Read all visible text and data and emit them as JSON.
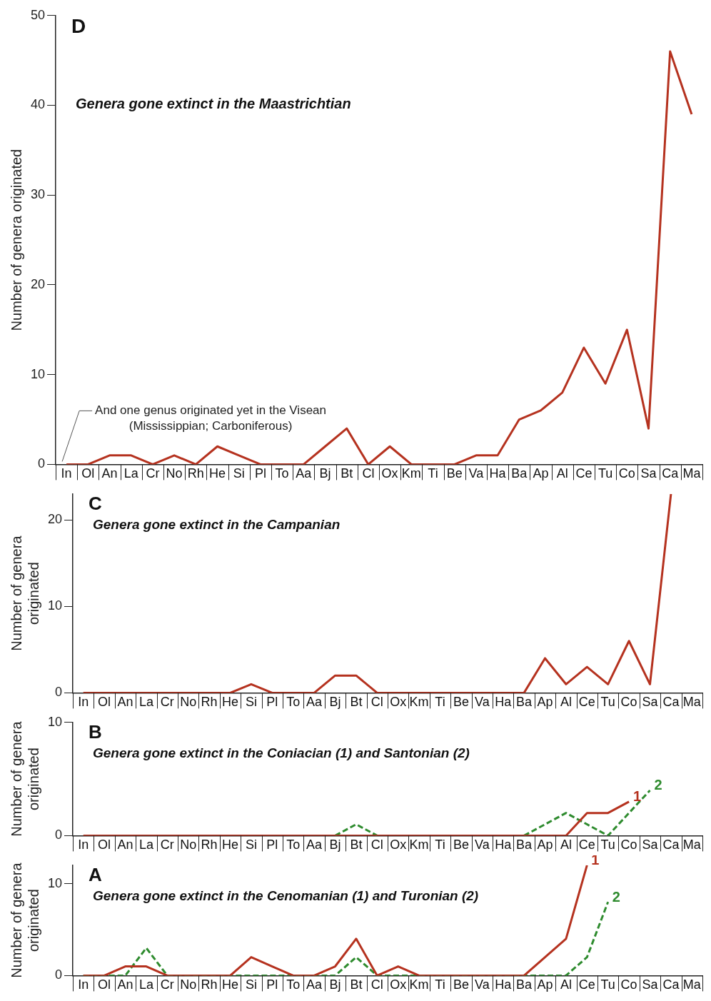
{
  "chart_data": [
    {
      "type": "line",
      "title": "D",
      "subtitle": "Genera gone extinct in the Maastrichtian",
      "ylabel": "Number of genera originated",
      "categories": [
        "In",
        "Ol",
        "An",
        "La",
        "Cr",
        "No",
        "Rh",
        "He",
        "Si",
        "Pl",
        "To",
        "Aa",
        "Bj",
        "Bt",
        "Cl",
        "Ox",
        "Km",
        "Ti",
        "Be",
        "Va",
        "Ha",
        "Ba",
        "Ap",
        "Al",
        "Ce",
        "Tu",
        "Co",
        "Sa",
        "Ca",
        "Ma"
      ],
      "series": [
        {
          "color": "#b5321f",
          "values": [
            0,
            0,
            1,
            1,
            0,
            1,
            0,
            2,
            1,
            0,
            0,
            0,
            2,
            4,
            0,
            2,
            0,
            0,
            0,
            1,
            1,
            5,
            6,
            8,
            13,
            9,
            15,
            4,
            46,
            39
          ]
        }
      ],
      "ylim": [
        0,
        50
      ],
      "yticks": [
        0,
        10,
        20,
        30,
        40,
        50
      ],
      "grid": false,
      "legend": false,
      "marker": "none",
      "annotations": [
        {
          "text": "And one genus originated yet in the Visean\n(Mississippian; Carboniferous)",
          "x": "In",
          "y": 0
        }
      ]
    },
    {
      "type": "line",
      "title": "C",
      "subtitle": "Genera gone extinct in the Campanian",
      "ylabel": "Number of genera originated",
      "categories": [
        "In",
        "Ol",
        "An",
        "La",
        "Cr",
        "No",
        "Rh",
        "He",
        "Si",
        "Pl",
        "To",
        "Aa",
        "Bj",
        "Bt",
        "Cl",
        "Ox",
        "Km",
        "Ti",
        "Be",
        "Va",
        "Ha",
        "Ba",
        "Ap",
        "Al",
        "Ce",
        "Tu",
        "Co",
        "Sa",
        "Ca",
        "Ma"
      ],
      "series": [
        {
          "color": "#b5321f",
          "values": [
            0,
            0,
            0,
            0,
            0,
            0,
            0,
            0,
            1,
            0,
            0,
            0,
            2,
            2,
            0,
            0,
            0,
            0,
            0,
            0,
            0,
            0,
            4,
            1,
            3,
            1,
            6,
            1,
            23,
            null
          ]
        }
      ],
      "ylim": [
        0,
        23
      ],
      "yticks": [
        0,
        10,
        20
      ],
      "grid": false,
      "legend": false,
      "marker": "none"
    },
    {
      "type": "line",
      "title": "B",
      "subtitle": "Genera gone extinct in the Coniacian (1) and Santonian (2)",
      "ylabel": "Number of genera originated",
      "categories": [
        "In",
        "Ol",
        "An",
        "La",
        "Cr",
        "No",
        "Rh",
        "He",
        "Si",
        "Pl",
        "To",
        "Aa",
        "Bj",
        "Bt",
        "Cl",
        "Ox",
        "Km",
        "Ti",
        "Be",
        "Va",
        "Ha",
        "Ba",
        "Ap",
        "Al",
        "Ce",
        "Tu",
        "Co",
        "Sa",
        "Ca",
        "Ma"
      ],
      "series": [
        {
          "name": "1",
          "color": "#b5321f",
          "line_style": "solid",
          "values": [
            0,
            0,
            0,
            0,
            0,
            0,
            0,
            0,
            0,
            0,
            0,
            0,
            0,
            0,
            0,
            0,
            0,
            0,
            0,
            0,
            0,
            0,
            0,
            0,
            2,
            2,
            3,
            null,
            null,
            null
          ]
        },
        {
          "name": "2",
          "color": "#2e8b2e",
          "line_style": "dashed",
          "values": [
            null,
            null,
            null,
            null,
            null,
            null,
            null,
            null,
            null,
            null,
            null,
            null,
            0,
            1,
            0,
            null,
            null,
            null,
            null,
            null,
            null,
            0,
            1,
            2,
            1,
            0,
            2,
            4,
            null,
            null
          ]
        }
      ],
      "ylim": [
        0,
        10
      ],
      "yticks": [
        0,
        10
      ],
      "grid": false,
      "legend": false,
      "marker": "none"
    },
    {
      "type": "line",
      "title": "A",
      "subtitle": "Genera gone extinct in the Cenomanian (1) and Turonian (2)",
      "ylabel": "Number of genera originated",
      "categories": [
        "In",
        "Ol",
        "An",
        "La",
        "Cr",
        "No",
        "Rh",
        "He",
        "Si",
        "Pl",
        "To",
        "Aa",
        "Bj",
        "Bt",
        "Cl",
        "Ox",
        "Km",
        "Ti",
        "Be",
        "Va",
        "Ha",
        "Ba",
        "Ap",
        "Al",
        "Ce",
        "Tu",
        "Co",
        "Sa",
        "Ca",
        "Ma"
      ],
      "series": [
        {
          "name": "1",
          "color": "#b5321f",
          "line_style": "solid",
          "values": [
            0,
            0,
            1,
            1,
            0,
            0,
            0,
            0,
            2,
            1,
            0,
            0,
            1,
            4,
            0,
            1,
            0,
            0,
            0,
            0,
            0,
            0,
            2,
            4,
            12,
            null,
            null,
            null,
            null,
            null
          ]
        },
        {
          "name": "2",
          "color": "#2e8b2e",
          "line_style": "dashed",
          "values": [
            0,
            0,
            0,
            3,
            0,
            0,
            0,
            0,
            0,
            0,
            0,
            0,
            0,
            2,
            0,
            0,
            0,
            0,
            0,
            0,
            0,
            0,
            0,
            0,
            2,
            8,
            null,
            null,
            null,
            null
          ]
        }
      ],
      "ylim": [
        0,
        12
      ],
      "yticks": [
        0,
        10
      ],
      "grid": false,
      "legend": false,
      "marker": "none"
    }
  ]
}
